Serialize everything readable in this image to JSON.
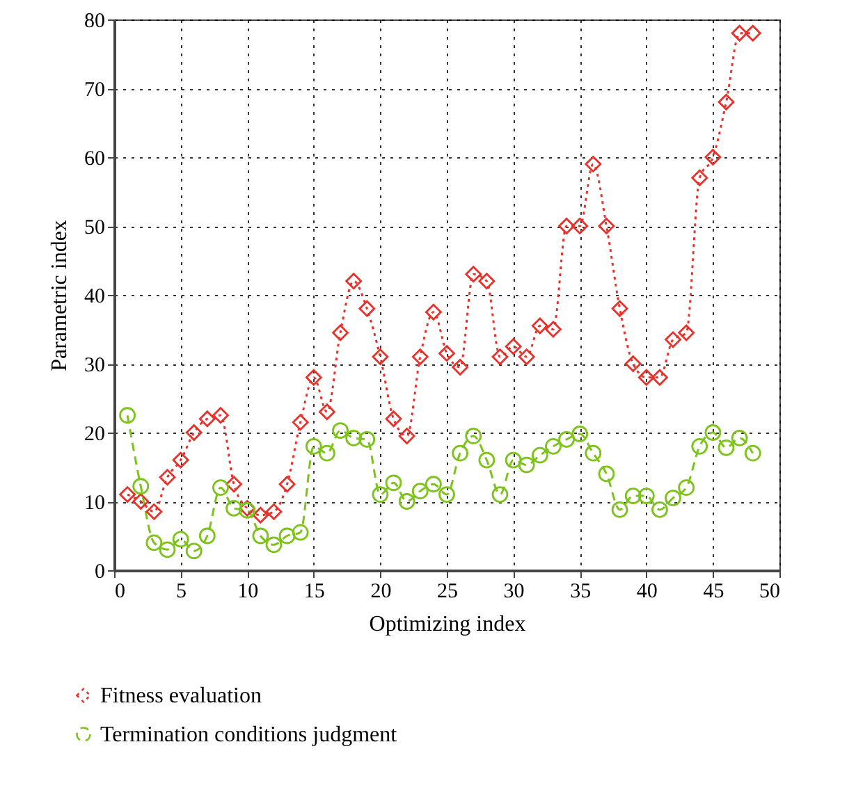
{
  "chart_data": {
    "type": "line",
    "xlabel": "Optimizing index",
    "ylabel": "Parametric index",
    "x": [
      1,
      2,
      3,
      4,
      5,
      6,
      7,
      8,
      9,
      10,
      11,
      12,
      13,
      14,
      15,
      16,
      17,
      18,
      19,
      20,
      21,
      22,
      23,
      24,
      25,
      26,
      27,
      28,
      29,
      30,
      31,
      32,
      33,
      34,
      35,
      36,
      37,
      38,
      39,
      40,
      41,
      42,
      43,
      44,
      45,
      46,
      47,
      48
    ],
    "series": [
      {
        "name": "Fitness evaluation",
        "color": "#e8312a",
        "marker": "diamond",
        "line_style": "dotted",
        "values": [
          11,
          10,
          8.5,
          13.5,
          16,
          20,
          22,
          22.5,
          12.5,
          9,
          8,
          8.5,
          12.5,
          21.5,
          28,
          23,
          34.5,
          42,
          38,
          31,
          22,
          19.5,
          31,
          37.5,
          31.5,
          29.5,
          43,
          42,
          31,
          32.5,
          31,
          35.5,
          35,
          50,
          50,
          59,
          50,
          38,
          30,
          28,
          28,
          33.5,
          34.5,
          57,
          60,
          68,
          78,
          78
        ]
      },
      {
        "name": "Termination conditions judgment",
        "color": "#7dc31b",
        "marker": "circle",
        "line_style": "dashed",
        "values": [
          22.5,
          12.2,
          4,
          3,
          4.5,
          2.8,
          5,
          12,
          9,
          8.7,
          5,
          3.7,
          5,
          5.5,
          18,
          17,
          20.3,
          19.2,
          19,
          11,
          12.7,
          10,
          11.5,
          12.5,
          11,
          17,
          19.5,
          16,
          11,
          16,
          15.3,
          16.7,
          18,
          19,
          19.8,
          17,
          14,
          8.8,
          10.8,
          10.8,
          8.8,
          10.5,
          12,
          18,
          20,
          17.8,
          19.2,
          17
        ]
      }
    ],
    "xlim": [
      0,
      50
    ],
    "xticks": [
      0,
      5,
      10,
      15,
      20,
      25,
      30,
      35,
      40,
      45,
      50
    ],
    "ylim": [
      0,
      80
    ],
    "yticks": [
      0,
      10,
      20,
      30,
      40,
      50,
      60,
      70,
      80
    ],
    "grid": true,
    "legend": "bottom"
  }
}
